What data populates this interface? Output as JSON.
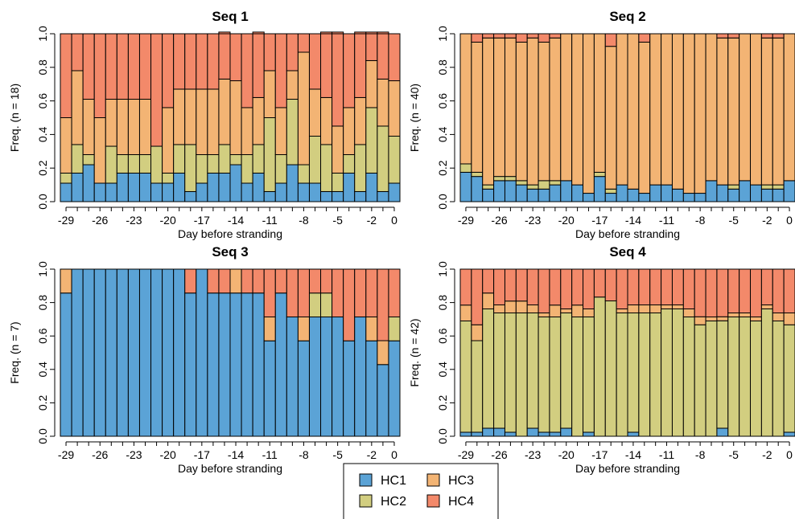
{
  "figure": {
    "legend": [
      {
        "label": "HC1",
        "color": "#5ba3d6"
      },
      {
        "label": "HC2",
        "color": "#d2ce80"
      },
      {
        "label": "HC3",
        "color": "#f3b474"
      },
      {
        "label": "HC4",
        "color": "#f3896a"
      }
    ],
    "legend_placement": "bottom-center"
  },
  "chart_data": [
    {
      "type": "bar",
      "stacked": true,
      "title": "Seq 1",
      "xlabel": "Day before stranding",
      "ylabel": "Freq. (n = 18)",
      "ylim": [
        0,
        1
      ],
      "yticks": [
        "0.0",
        "0.2",
        "0.4",
        "0.6",
        "0.8",
        "1.0"
      ],
      "xtick_labels": [
        "-29",
        "-26",
        "-23",
        "-20",
        "-17",
        "-14",
        "-11",
        "-8",
        "-5",
        "-2",
        "0"
      ],
      "xtick_values": [
        -29,
        -26,
        -23,
        -20,
        -17,
        -14,
        -11,
        -8,
        -5,
        -2,
        0
      ],
      "x": [
        -29,
        -28,
        -27,
        -26,
        -25,
        -24,
        -23,
        -22,
        -21,
        -20,
        -19,
        -18,
        -17,
        -16,
        -15,
        -14,
        -13,
        -12,
        -11,
        -10,
        -9,
        -8,
        -7,
        -6,
        -5,
        -4,
        -3,
        -2,
        -1,
        0
      ],
      "series": [
        {
          "name": "HC1",
          "color": "#5ba3d6",
          "values": [
            0.11,
            0.17,
            0.22,
            0.11,
            0.11,
            0.17,
            0.17,
            0.17,
            0.11,
            0.11,
            0.17,
            0.06,
            0.11,
            0.17,
            0.17,
            0.22,
            0.11,
            0.17,
            0.06,
            0.11,
            0.22,
            0.11,
            0.11,
            0.06,
            0.06,
            0.17,
            0.06,
            0.17,
            0.06,
            0.11
          ]
        },
        {
          "name": "HC2",
          "color": "#d2ce80",
          "values": [
            0.06,
            0.17,
            0.06,
            0.0,
            0.22,
            0.11,
            0.11,
            0.11,
            0.22,
            0.06,
            0.17,
            0.28,
            0.17,
            0.11,
            0.17,
            0.06,
            0.17,
            0.17,
            0.44,
            0.17,
            0.39,
            0.11,
            0.28,
            0.28,
            0.11,
            0.11,
            0.28,
            0.39,
            0.39,
            0.28
          ]
        },
        {
          "name": "HC3",
          "color": "#f3b474",
          "values": [
            0.33,
            0.44,
            0.33,
            0.39,
            0.28,
            0.33,
            0.33,
            0.33,
            0.0,
            0.39,
            0.33,
            0.33,
            0.39,
            0.39,
            0.39,
            0.44,
            0.28,
            0.28,
            0.28,
            0.28,
            0.17,
            0.67,
            0.28,
            0.28,
            0.28,
            0.28,
            0.28,
            0.28,
            0.28,
            0.33
          ]
        },
        {
          "name": "HC4",
          "color": "#f3896a",
          "values": [
            0.5,
            0.22,
            0.39,
            0.5,
            0.39,
            0.39,
            0.39,
            0.39,
            0.67,
            0.44,
            0.33,
            0.33,
            0.33,
            0.33,
            0.28,
            0.28,
            0.44,
            0.39,
            0.22,
            0.44,
            0.22,
            0.11,
            0.33,
            0.39,
            0.56,
            0.44,
            0.39,
            0.17,
            0.28,
            0.28
          ]
        }
      ]
    },
    {
      "type": "bar",
      "stacked": true,
      "title": "Seq 2",
      "xlabel": "Day before stranding",
      "ylabel": "Freq. (n = 40)",
      "ylim": [
        0,
        1
      ],
      "yticks": [
        "0.0",
        "0.2",
        "0.4",
        "0.6",
        "0.8",
        "1.0"
      ],
      "xtick_labels": [
        "-29",
        "-26",
        "-23",
        "-20",
        "-17",
        "-14",
        "-11",
        "-8",
        "-5",
        "-2",
        "0"
      ],
      "xtick_values": [
        -29,
        -26,
        -23,
        -20,
        -17,
        -14,
        -11,
        -8,
        -5,
        -2,
        0
      ],
      "x": [
        -29,
        -28,
        -27,
        -26,
        -25,
        -24,
        -23,
        -22,
        -21,
        -20,
        -19,
        -18,
        -17,
        -16,
        -15,
        -14,
        -13,
        -12,
        -11,
        -10,
        -9,
        -8,
        -7,
        -6,
        -5,
        -4,
        -3,
        -2,
        -1,
        0
      ],
      "series": [
        {
          "name": "HC1",
          "color": "#5ba3d6",
          "values": [
            0.175,
            0.15,
            0.075,
            0.125,
            0.125,
            0.1,
            0.075,
            0.075,
            0.1,
            0.125,
            0.1,
            0.05,
            0.15,
            0.05,
            0.1,
            0.075,
            0.05,
            0.1,
            0.1,
            0.075,
            0.05,
            0.05,
            0.125,
            0.1,
            0.075,
            0.125,
            0.1,
            0.075,
            0.075,
            0.125
          ]
        },
        {
          "name": "HC2",
          "color": "#d2ce80",
          "values": [
            0.05,
            0.025,
            0.025,
            0.025,
            0.025,
            0.025,
            0.025,
            0.05,
            0.025,
            0.0,
            0.0,
            0.0,
            0.025,
            0.025,
            0.0,
            0.0,
            0.0,
            0.0,
            0.0,
            0.0,
            0.0,
            0.0,
            0.0,
            0.0,
            0.025,
            0.0,
            0.0,
            0.025,
            0.025,
            0.0
          ]
        },
        {
          "name": "HC3",
          "color": "#f3b474",
          "values": [
            0.775,
            0.775,
            0.875,
            0.825,
            0.825,
            0.825,
            0.875,
            0.825,
            0.85,
            0.875,
            0.9,
            0.95,
            0.825,
            0.85,
            0.9,
            0.925,
            0.9,
            0.9,
            0.9,
            0.925,
            0.95,
            0.95,
            0.875,
            0.875,
            0.875,
            0.875,
            0.9,
            0.875,
            0.875,
            0.875
          ]
        },
        {
          "name": "HC4",
          "color": "#f3896a",
          "values": [
            0.0,
            0.05,
            0.025,
            0.025,
            0.025,
            0.05,
            0.025,
            0.05,
            0.025,
            0.0,
            0.0,
            0.0,
            0.0,
            0.075,
            0.0,
            0.0,
            0.05,
            0.0,
            0.0,
            0.0,
            0.0,
            0.0,
            0.0,
            0.025,
            0.025,
            0.0,
            0.0,
            0.025,
            0.025,
            0.0
          ]
        }
      ]
    },
    {
      "type": "bar",
      "stacked": true,
      "title": "Seq 3",
      "xlabel": "Day before stranding",
      "ylabel": "Freq. (n = 7)",
      "ylim": [
        0,
        1
      ],
      "yticks": [
        "0.0",
        "0.2",
        "0.4",
        "0.6",
        "0.8",
        "1.0"
      ],
      "xtick_labels": [
        "-29",
        "-26",
        "-23",
        "-20",
        "-17",
        "-14",
        "-11",
        "-8",
        "-5",
        "-2",
        "0"
      ],
      "xtick_values": [
        -29,
        -26,
        -23,
        -20,
        -17,
        -14,
        -11,
        -8,
        -5,
        -2,
        0
      ],
      "x": [
        -29,
        -28,
        -27,
        -26,
        -25,
        -24,
        -23,
        -22,
        -21,
        -20,
        -19,
        -18,
        -17,
        -16,
        -15,
        -14,
        -13,
        -12,
        -11,
        -10,
        -9,
        -8,
        -7,
        -6,
        -5,
        -4,
        -3,
        -2,
        -1,
        0
      ],
      "series": [
        {
          "name": "HC1",
          "color": "#5ba3d6",
          "values": [
            0.857,
            1.0,
            1.0,
            1.0,
            1.0,
            1.0,
            1.0,
            1.0,
            1.0,
            1.0,
            1.0,
            0.857,
            1.0,
            0.857,
            0.857,
            0.857,
            0.857,
            0.857,
            0.571,
            0.857,
            0.714,
            0.571,
            0.714,
            0.714,
            0.714,
            0.571,
            0.714,
            0.571,
            0.429,
            0.571
          ]
        },
        {
          "name": "HC2",
          "color": "#d2ce80",
          "values": [
            0.0,
            0.0,
            0.0,
            0.0,
            0.0,
            0.0,
            0.0,
            0.0,
            0.0,
            0.0,
            0.0,
            0.0,
            0.0,
            0.0,
            0.0,
            0.0,
            0.0,
            0.0,
            0.0,
            0.0,
            0.0,
            0.0,
            0.143,
            0.143,
            0.0,
            0.0,
            0.0,
            0.0,
            0.0,
            0.143
          ]
        },
        {
          "name": "HC3",
          "color": "#f3b474",
          "values": [
            0.143,
            0.0,
            0.0,
            0.0,
            0.0,
            0.0,
            0.0,
            0.0,
            0.0,
            0.0,
            0.0,
            0.0,
            0.0,
            0.0,
            0.0,
            0.143,
            0.0,
            0.0,
            0.143,
            0.0,
            0.0,
            0.143,
            0.0,
            0.0,
            0.0,
            0.0,
            0.0,
            0.143,
            0.143,
            0.0
          ]
        },
        {
          "name": "HC4",
          "color": "#f3896a",
          "values": [
            0.0,
            0.0,
            0.0,
            0.0,
            0.0,
            0.0,
            0.0,
            0.0,
            0.0,
            0.0,
            0.0,
            0.143,
            0.0,
            0.143,
            0.143,
            0.0,
            0.143,
            0.143,
            0.286,
            0.143,
            0.286,
            0.286,
            0.143,
            0.143,
            0.286,
            0.429,
            0.286,
            0.286,
            0.428,
            0.286
          ]
        }
      ]
    },
    {
      "type": "bar",
      "stacked": true,
      "title": "Seq 4",
      "xlabel": "Day before stranding",
      "ylabel": "Freq. (n = 42)",
      "ylim": [
        0,
        1
      ],
      "yticks": [
        "0.0",
        "0.2",
        "0.4",
        "0.6",
        "0.8",
        "1.0"
      ],
      "xtick_labels": [
        "-29",
        "-26",
        "-23",
        "-20",
        "-17",
        "-14",
        "-11",
        "-8",
        "-5",
        "-2",
        "0"
      ],
      "xtick_values": [
        -29,
        -26,
        -23,
        -20,
        -17,
        -14,
        -11,
        -8,
        -5,
        -2,
        0
      ],
      "x": [
        -29,
        -28,
        -27,
        -26,
        -25,
        -24,
        -23,
        -22,
        -21,
        -20,
        -19,
        -18,
        -17,
        -16,
        -15,
        -14,
        -13,
        -12,
        -11,
        -10,
        -9,
        -8,
        -7,
        -6,
        -5,
        -4,
        -3,
        -2,
        -1,
        0
      ],
      "series": [
        {
          "name": "HC1",
          "color": "#5ba3d6",
          "values": [
            0.024,
            0.024,
            0.048,
            0.048,
            0.024,
            0.0,
            0.048,
            0.024,
            0.024,
            0.048,
            0.0,
            0.024,
            0.0,
            0.0,
            0.0,
            0.024,
            0.0,
            0.0,
            0.0,
            0.0,
            0.0,
            0.0,
            0.0,
            0.048,
            0.0,
            0.0,
            0.0,
            0.0,
            0.0,
            0.024
          ]
        },
        {
          "name": "HC2",
          "color": "#d2ce80",
          "values": [
            0.666,
            0.548,
            0.714,
            0.69,
            0.714,
            0.738,
            0.69,
            0.69,
            0.69,
            0.69,
            0.714,
            0.69,
            0.833,
            0.81,
            0.738,
            0.714,
            0.738,
            0.738,
            0.762,
            0.762,
            0.714,
            0.667,
            0.69,
            0.643,
            0.714,
            0.714,
            0.69,
            0.762,
            0.69,
            0.643
          ]
        },
        {
          "name": "HC3",
          "color": "#f3b474",
          "values": [
            0.095,
            0.095,
            0.095,
            0.048,
            0.071,
            0.071,
            0.048,
            0.024,
            0.071,
            0.024,
            0.071,
            0.048,
            0.0,
            0.0,
            0.024,
            0.048,
            0.048,
            0.048,
            0.024,
            0.024,
            0.048,
            0.048,
            0.024,
            0.024,
            0.024,
            0.024,
            0.024,
            0.024,
            0.048,
            0.071
          ]
        },
        {
          "name": "HC4",
          "color": "#f3896a",
          "values": [
            0.215,
            0.333,
            0.143,
            0.214,
            0.191,
            0.191,
            0.214,
            0.262,
            0.215,
            0.238,
            0.215,
            0.238,
            0.167,
            0.19,
            0.238,
            0.214,
            0.214,
            0.214,
            0.214,
            0.214,
            0.238,
            0.285,
            0.286,
            0.285,
            0.262,
            0.262,
            0.286,
            0.214,
            0.262,
            0.262
          ]
        }
      ]
    }
  ]
}
